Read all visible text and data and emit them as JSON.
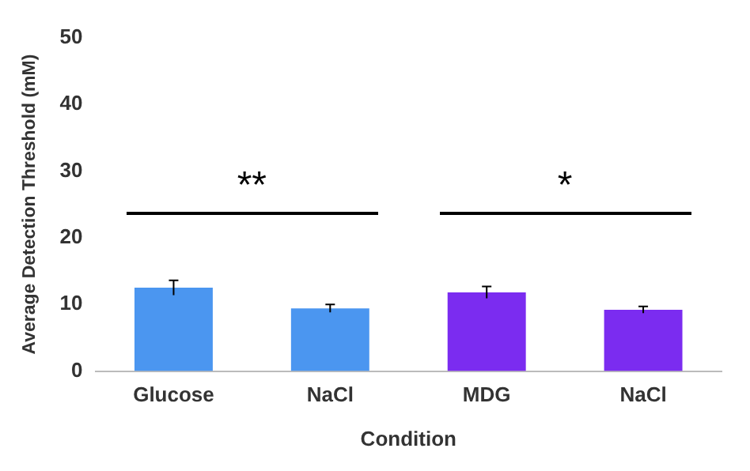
{
  "chart_data": {
    "type": "bar",
    "xlabel": "Condition",
    "ylabel": "Average Detection Threshold (mM)",
    "categories": [
      "Glucose",
      "NaCl",
      "MDG",
      "NaCl"
    ],
    "values": [
      12.5,
      9.4,
      11.8,
      9.2
    ],
    "colors": [
      "#4b96f0",
      "#4b96f0",
      "#7b2cf0",
      "#7b2cf0"
    ],
    "errors": [
      1.1,
      0.6,
      0.9,
      0.5
    ],
    "ylim": [
      0,
      50
    ],
    "yticks": [
      0,
      10,
      20,
      30,
      40,
      50
    ],
    "grid": false,
    "legend": false,
    "annotations": [
      "**",
      "*"
    ]
  }
}
